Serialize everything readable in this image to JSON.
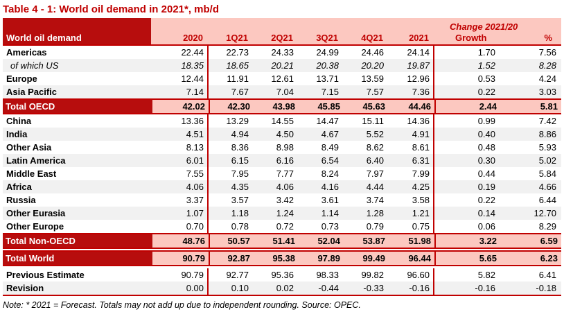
{
  "title": "Table 4 - 1: World oil demand in 2021*, mb/d",
  "table": {
    "corner_label": "World oil demand",
    "change_header": "Change 2021/20",
    "columns": [
      "2020",
      "1Q21",
      "2Q21",
      "3Q21",
      "4Q21",
      "2021",
      "Growth",
      "%"
    ],
    "rows": [
      {
        "label": "Americas",
        "style": "plain",
        "group": "main",
        "values": [
          "22.44",
          "22.73",
          "24.33",
          "24.99",
          "24.46",
          "24.14",
          "1.70",
          "7.56"
        ]
      },
      {
        "label": "of which US",
        "style": "italic",
        "group": "main",
        "values": [
          "18.35",
          "18.65",
          "20.21",
          "20.38",
          "20.20",
          "19.87",
          "1.52",
          "8.28"
        ]
      },
      {
        "label": "Europe",
        "style": "plain",
        "group": "main",
        "values": [
          "12.44",
          "11.91",
          "12.61",
          "13.71",
          "13.59",
          "12.96",
          "0.53",
          "4.24"
        ]
      },
      {
        "label": "Asia Pacific",
        "style": "plain",
        "group": "main",
        "values": [
          "7.14",
          "7.67",
          "7.04",
          "7.15",
          "7.57",
          "7.36",
          "0.22",
          "3.03"
        ]
      },
      {
        "label": "Total OECD",
        "style": "total",
        "group": "main",
        "values": [
          "42.02",
          "42.30",
          "43.98",
          "45.85",
          "45.63",
          "44.46",
          "2.44",
          "5.81"
        ]
      },
      {
        "label": "China",
        "style": "plain",
        "group": "main",
        "values": [
          "13.36",
          "13.29",
          "14.55",
          "14.47",
          "15.11",
          "14.36",
          "0.99",
          "7.42"
        ]
      },
      {
        "label": "India",
        "style": "plain",
        "group": "main",
        "values": [
          "4.51",
          "4.94",
          "4.50",
          "4.67",
          "5.52",
          "4.91",
          "0.40",
          "8.86"
        ]
      },
      {
        "label": "Other Asia",
        "style": "plain",
        "group": "main",
        "values": [
          "8.13",
          "8.36",
          "8.98",
          "8.49",
          "8.62",
          "8.61",
          "0.48",
          "5.93"
        ]
      },
      {
        "label": "Latin America",
        "style": "plain",
        "group": "main",
        "values": [
          "6.01",
          "6.15",
          "6.16",
          "6.54",
          "6.40",
          "6.31",
          "0.30",
          "5.02"
        ]
      },
      {
        "label": "Middle East",
        "style": "plain",
        "group": "main",
        "values": [
          "7.55",
          "7.95",
          "7.77",
          "8.24",
          "7.97",
          "7.99",
          "0.44",
          "5.84"
        ]
      },
      {
        "label": "Africa",
        "style": "plain",
        "group": "main",
        "values": [
          "4.06",
          "4.35",
          "4.06",
          "4.16",
          "4.44",
          "4.25",
          "0.19",
          "4.66"
        ]
      },
      {
        "label": "Russia",
        "style": "plain",
        "group": "main",
        "values": [
          "3.37",
          "3.57",
          "3.42",
          "3.61",
          "3.74",
          "3.58",
          "0.22",
          "6.44"
        ]
      },
      {
        "label": "Other Eurasia",
        "style": "plain",
        "group": "main",
        "values": [
          "1.07",
          "1.18",
          "1.24",
          "1.14",
          "1.28",
          "1.21",
          "0.14",
          "12.70"
        ]
      },
      {
        "label": "Other Europe",
        "style": "plain",
        "group": "main",
        "values": [
          "0.70",
          "0.78",
          "0.72",
          "0.73",
          "0.79",
          "0.75",
          "0.06",
          "8.29"
        ]
      },
      {
        "label": "Total Non-OECD",
        "style": "total",
        "group": "main",
        "values": [
          "48.76",
          "50.57",
          "51.41",
          "52.04",
          "53.87",
          "51.98",
          "3.22",
          "6.59"
        ]
      },
      {
        "label": "Total World",
        "style": "total",
        "group": "main",
        "values": [
          "90.79",
          "92.87",
          "95.38",
          "97.89",
          "99.49",
          "96.44",
          "5.65",
          "6.23"
        ]
      },
      {
        "label": "Previous Estimate",
        "style": "plain",
        "group": "estimate",
        "values": [
          "90.79",
          "92.77",
          "95.36",
          "98.33",
          "99.82",
          "96.60",
          "5.82",
          "6.41"
        ]
      },
      {
        "label": "Revision",
        "style": "plain",
        "group": "estimate",
        "values": [
          "0.00",
          "0.10",
          "0.02",
          "-0.44",
          "-0.33",
          "-0.16",
          "-0.16",
          "-0.18"
        ]
      }
    ],
    "note": "Note: * 2021 = Forecast. Totals may not add up due to independent rounding. Source: OPEC."
  },
  "colors": {
    "dark_red_fill": "#B70D0D",
    "border_red": "#C00000",
    "title_red": "#C00000",
    "header_pink": "#FCC8C0",
    "zebra_gray": "#F1F1F1"
  }
}
